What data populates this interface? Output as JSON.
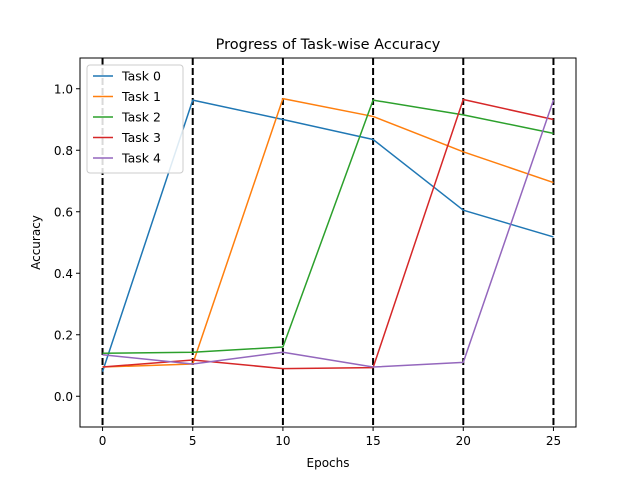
{
  "chart_data": {
    "type": "line",
    "title": "Progress of Task-wise Accuracy",
    "xlabel": "Epochs",
    "ylabel": "Accuracy",
    "xlim": [
      -1.25,
      26.25
    ],
    "ylim": [
      -0.1,
      1.1
    ],
    "xticks": [
      0,
      5,
      10,
      15,
      20,
      25
    ],
    "yticks": [
      0.0,
      0.2,
      0.4,
      0.6,
      0.8,
      1.0
    ],
    "xtick_labels": [
      "0",
      "5",
      "10",
      "15",
      "20",
      "25"
    ],
    "ytick_labels": [
      "0.0",
      "0.2",
      "0.4",
      "0.6",
      "0.8",
      "1.0"
    ],
    "vlines": [
      0,
      5,
      10,
      15,
      20,
      25
    ],
    "vline_style": "black dashed",
    "grid": false,
    "legend_position": "upper left",
    "x": [
      0,
      5,
      10,
      15,
      20,
      25
    ],
    "series": [
      {
        "name": "Task 0",
        "color": "#1f77b4",
        "values": [
          0.08,
          0.963,
          0.9,
          0.835,
          0.605,
          0.518
        ]
      },
      {
        "name": "Task 1",
        "color": "#ff7f0e",
        "values": [
          0.095,
          0.105,
          0.968,
          0.91,
          0.795,
          0.695
        ]
      },
      {
        "name": "Task 2",
        "color": "#2ca02c",
        "values": [
          0.14,
          0.143,
          0.16,
          0.963,
          0.915,
          0.855
        ]
      },
      {
        "name": "Task 3",
        "color": "#d62728",
        "values": [
          0.095,
          0.118,
          0.09,
          0.093,
          0.965,
          0.9
        ]
      },
      {
        "name": "Task 4",
        "color": "#9467bd",
        "values": [
          0.135,
          0.105,
          0.143,
          0.095,
          0.11,
          0.963
        ]
      }
    ]
  }
}
